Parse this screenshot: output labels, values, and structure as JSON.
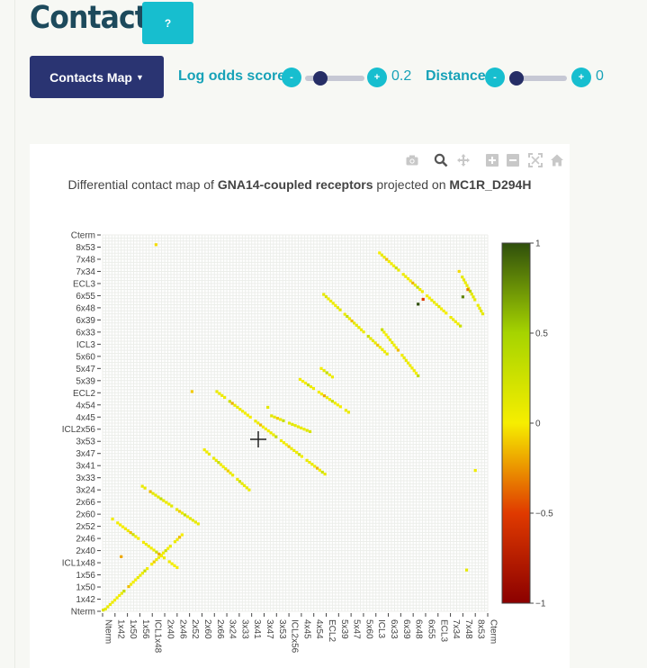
{
  "header": {
    "title": "Contacts",
    "help_label": "?",
    "map_dropdown_label": "Contacts Map",
    "log_odds_label": "Log odds score",
    "log_odds_value": "0.2",
    "distance_label": "Distance",
    "distance_value": "0",
    "minus_label": "-",
    "plus_label": "+"
  },
  "modebar": {
    "icons": [
      "camera-icon",
      "zoom-icon",
      "pan-icon",
      "zoom-in-icon",
      "zoom-out-icon",
      "autoscale-icon",
      "home-icon"
    ]
  },
  "chart_data": {
    "type": "heatmap",
    "title_parts": [
      "Differential contact map of ",
      "GNA14-coupled receptors",
      " projected on ",
      "MC1R_D294H"
    ],
    "y_tick_labels": [
      "Nterm",
      "1x42",
      "1x50",
      "1x56",
      "ICL1x48",
      "2x40",
      "2x46",
      "2x52",
      "2x60",
      "2x66",
      "3x24",
      "3x33",
      "3x41",
      "3x47",
      "3x53",
      "ICL2x56",
      "4x45",
      "4x54",
      "ECL2",
      "5x39",
      "5x47",
      "5x60",
      "ICL3",
      "6x33",
      "6x39",
      "6x48",
      "6x55",
      "ECL3",
      "7x34",
      "7x48",
      "8x53",
      "Cterm"
    ],
    "x_tick_labels": [
      "Nterm",
      "1x42",
      "1x50",
      "1x56",
      "ICL1x48",
      "2x40",
      "2x46",
      "2x52",
      "2x60",
      "2x66",
      "3x24",
      "3x33",
      "3x41",
      "3x47",
      "3x53",
      "ICL2x56",
      "4x45",
      "4x54",
      "ECL2",
      "5x39",
      "5x47",
      "5x60",
      "ICL3",
      "6x33",
      "6x39",
      "6x48",
      "6x55",
      "ECL3",
      "7x34",
      "7x48",
      "8x53",
      "Cterm"
    ],
    "colorbar": {
      "range": [
        -1,
        1
      ],
      "ticks": [
        "1",
        "0.5",
        "0",
        "−0.5",
        "−1"
      ],
      "colorscale": [
        "#8b0000",
        "#e03a00",
        "#f6ee00",
        "#a6d400",
        "#2f4f0c"
      ]
    },
    "grid": true,
    "diagonal_bands": [
      {
        "start": [
          0.05,
          0.0
        ],
        "end": [
          6.2,
          6.1
        ],
        "value": 0.05
      },
      {
        "start": [
          0.8,
          7.6
        ],
        "end": [
          6.0,
          3.6
        ],
        "value": 0.02
      },
      {
        "start": [
          3.2,
          10.3
        ],
        "end": [
          7.7,
          7.2
        ],
        "value": 0.08
      },
      {
        "start": [
          8.2,
          13.3
        ],
        "end": [
          11.8,
          10.0
        ],
        "value": 0.06
      },
      {
        "start": [
          9.2,
          18.1
        ],
        "end": [
          17.9,
          11.3
        ],
        "value": 0.04
      },
      {
        "start": [
          13.6,
          16.1
        ],
        "end": [
          16.7,
          14.8
        ],
        "value": 0.1
      },
      {
        "start": [
          15.9,
          19.1
        ],
        "end": [
          19.8,
          16.4
        ],
        "value": 0.03
      },
      {
        "start": [
          17.6,
          20.0
        ],
        "end": [
          18.5,
          19.3
        ],
        "value": 0.05
      },
      {
        "start": [
          17.8,
          26.1
        ],
        "end": [
          22.9,
          21.2
        ],
        "value": 0.07
      },
      {
        "start": [
          22.5,
          23.2
        ],
        "end": [
          25.4,
          19.4
        ],
        "value": 0.05
      },
      {
        "start": [
          22.1,
          29.7
        ],
        "end": [
          28.8,
          23.5
        ],
        "value": 0.04
      },
      {
        "start": [
          28.7,
          28.0
        ],
        "end": [
          30.6,
          24.5
        ],
        "value": 0.09
      }
    ],
    "highlight_cells": [
      {
        "x": 0.05,
        "y": 0.1,
        "value": 0.15
      },
      {
        "x": 6.4,
        "y": 6.3,
        "value": 0.0
      },
      {
        "x": 1.5,
        "y": 4.5,
        "value": -0.2
      },
      {
        "x": 7.2,
        "y": 18.1,
        "value": -0.1
      },
      {
        "x": 4.3,
        "y": 30.2,
        "value": -0.05
      },
      {
        "x": 29.0,
        "y": 25.9,
        "value": 0.8
      },
      {
        "x": 29.4,
        "y": 26.5,
        "value": -0.3
      },
      {
        "x": 25.8,
        "y": 25.7,
        "value": -0.5
      },
      {
        "x": 25.4,
        "y": 25.3,
        "value": 1.0
      },
      {
        "x": 29.3,
        "y": 3.4,
        "value": 0.1
      },
      {
        "x": 30.0,
        "y": 11.6,
        "value": 0.05
      },
      {
        "x": 13.3,
        "y": 16.8,
        "value": 0.12
      }
    ]
  }
}
